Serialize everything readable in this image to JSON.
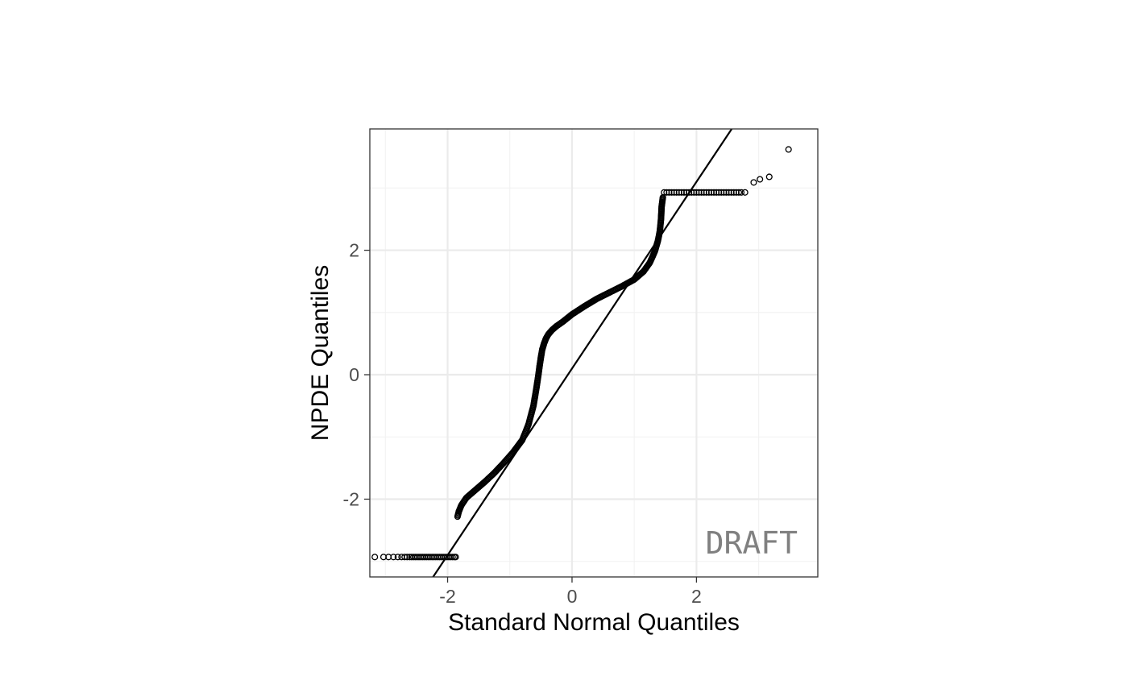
{
  "chart_data": {
    "type": "scatter",
    "xlabel": "Standard Normal Quantiles",
    "ylabel": "NPDE Quantiles",
    "xlim": [
      -3.25,
      3.95
    ],
    "ylim": [
      -3.25,
      3.95
    ],
    "x_ticks": [
      -2,
      0,
      2
    ],
    "y_ticks": [
      -2,
      0,
      2
    ],
    "x_tick_labels": [
      "-2",
      "0",
      "2"
    ],
    "y_tick_labels": [
      "-2",
      "0",
      "2"
    ],
    "grid": true,
    "theme": "bw",
    "marker": "open-circle",
    "reference_line": {
      "slope": 1.5,
      "intercept": 0.1
    },
    "annotation": "DRAFT",
    "point_groups": [
      {
        "segment": "lower-floor",
        "x": [
          -3.17,
          -3.03,
          -2.95,
          -2.87,
          -2.8,
          -2.74,
          -2.69,
          -2.65,
          -2.61,
          -2.58,
          -2.55,
          -2.52,
          -2.49,
          -2.46,
          -2.43,
          -2.4,
          -2.37,
          -2.34,
          -2.31,
          -2.28,
          -2.25,
          -2.22,
          -2.19,
          -2.16,
          -2.13,
          -2.1,
          -2.07,
          -2.04,
          -2.01,
          -1.98,
          -1.95,
          -1.92,
          -1.89,
          -1.87
        ],
        "y": -2.93
      },
      {
        "segment": "upper-ceiling",
        "x": [
          1.48,
          1.52,
          1.56,
          1.6,
          1.64,
          1.68,
          1.72,
          1.76,
          1.8,
          1.84,
          1.88,
          1.92,
          1.96,
          2.0,
          2.04,
          2.08,
          2.12,
          2.16,
          2.2,
          2.24,
          2.28,
          2.32,
          2.36,
          2.4,
          2.44,
          2.48,
          2.52,
          2.56,
          2.6,
          2.64,
          2.68,
          2.72,
          2.78
        ],
        "y": 2.93
      },
      {
        "segment": "upper-tail",
        "x": [
          2.92,
          3.02,
          3.17,
          3.48
        ],
        "y": [
          3.09,
          3.14,
          3.18,
          3.62
        ]
      },
      {
        "segment": "main-curve",
        "x": [
          -1.84,
          -1.82,
          -1.78,
          -1.7,
          -1.55,
          -1.4,
          -1.25,
          -1.1,
          -0.95,
          -0.8,
          -0.7,
          -0.62,
          -0.57,
          -0.54,
          -0.52,
          -0.5,
          -0.48,
          -0.45,
          -0.42,
          -0.38,
          -0.32,
          -0.25,
          -0.15,
          0.0,
          0.2,
          0.4,
          0.6,
          0.8,
          1.0,
          1.15,
          1.25,
          1.33,
          1.38,
          1.41,
          1.43,
          1.44,
          1.46
        ],
        "y": [
          -2.28,
          -2.2,
          -2.1,
          -1.98,
          -1.85,
          -1.72,
          -1.58,
          -1.42,
          -1.25,
          -1.05,
          -0.8,
          -0.5,
          -0.2,
          0.0,
          0.15,
          0.28,
          0.4,
          0.5,
          0.58,
          0.65,
          0.72,
          0.78,
          0.85,
          0.97,
          1.1,
          1.22,
          1.32,
          1.42,
          1.53,
          1.66,
          1.8,
          1.98,
          2.15,
          2.3,
          2.5,
          2.7,
          2.85
        ]
      }
    ]
  }
}
